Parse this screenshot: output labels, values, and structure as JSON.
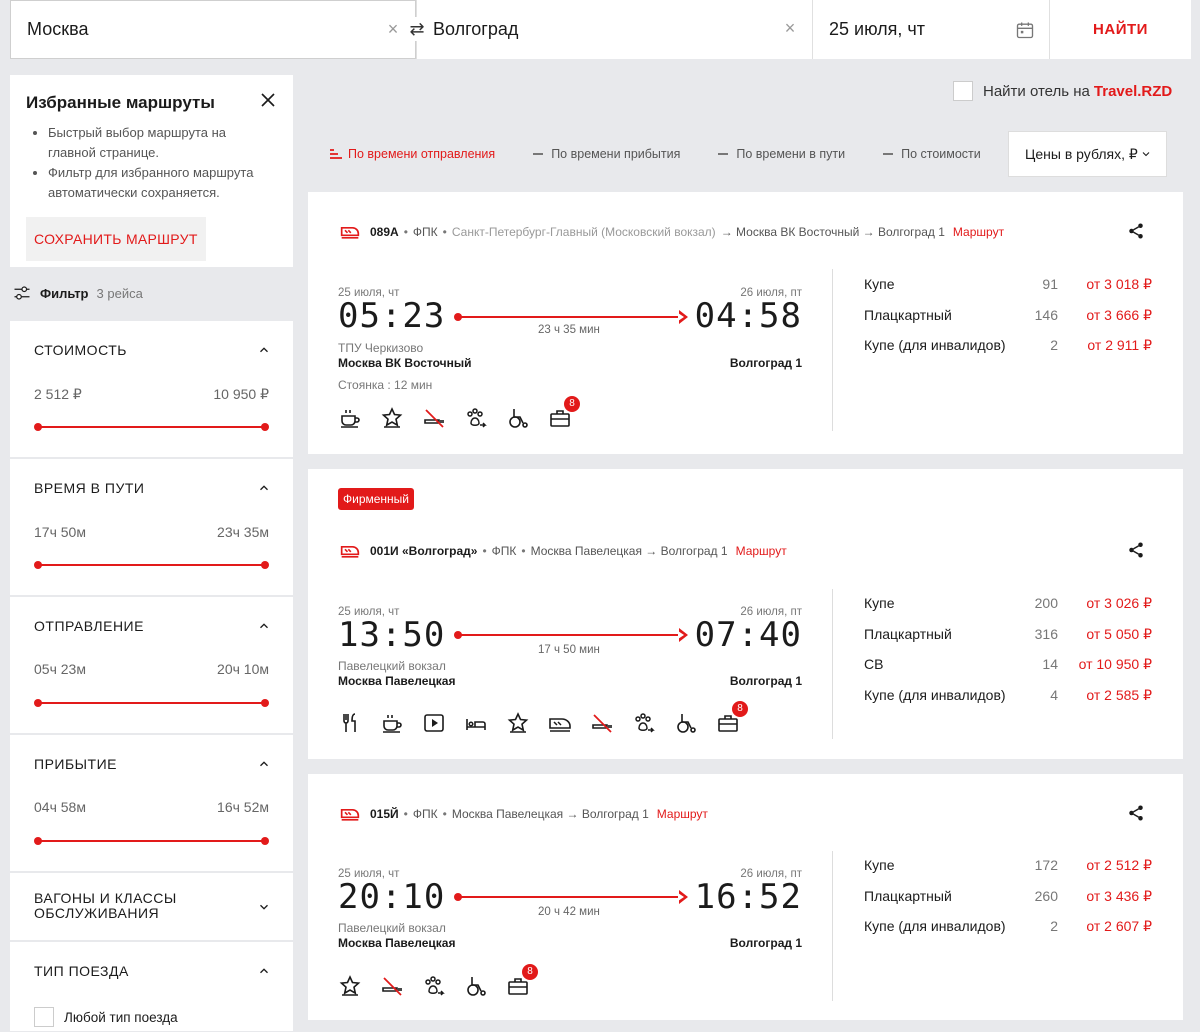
{
  "search": {
    "from": "Москва",
    "to": "Волгоград",
    "date": "25 июля, чт",
    "find_label": "НАЙТИ"
  },
  "favorites": {
    "title": "Избранные маршруты",
    "bullets": [
      "Быстрый выбор маршрута на главной странице.",
      "Фильтр для избранного маршрута автоматически сохраняется."
    ],
    "save_label": "СОХРАНИТЬ МАРШРУТ"
  },
  "filter": {
    "label": "Фильтр",
    "count": "3 рейса",
    "sections": [
      {
        "title": "СТОИМОСТЬ",
        "min": "2 512 ₽",
        "max": "10 950 ₽"
      },
      {
        "title": "ВРЕМЯ В ПУТИ",
        "min": "17ч 50м",
        "max": "23ч 35м"
      },
      {
        "title": "ОТПРАВЛЕНИЕ",
        "min": "05ч 23м",
        "max": "20ч 10м"
      },
      {
        "title": "ПРИБЫТИЕ",
        "min": "04ч 58м",
        "max": "16ч 52м"
      },
      {
        "title_line1": "ВАГОНЫ И КЛАССЫ",
        "title_line2": "ОБСЛУЖИВАНИЯ"
      },
      {
        "title": "ТИП ПОЕЗДА",
        "option": "Любой тип поезда"
      }
    ]
  },
  "hotel": {
    "text": "Найти отель на",
    "brand": "Travel.RZD"
  },
  "sort": {
    "items": [
      "По времени отправления",
      "По времени прибытия",
      "По времени в пути",
      "По стоимости"
    ],
    "currency": "Цены в рублях, ₽"
  },
  "trains": [
    {
      "number": "089А",
      "carrier": "ФПК",
      "origin": "Санкт-Петербург-Главный (Московский вокзал)",
      "route": "→ Москва ВК Восточный → Волгоград 1",
      "route_link": "Маршрут",
      "dep_date": "25 июля, чт",
      "dep_time": "05:23",
      "duration": "23 ч 35 мин",
      "arr_date": "26 июля, пт",
      "arr_time": "04:58",
      "dep_station_sub": "ТПУ Черкизово",
      "dep_station": "Москва ВК Восточный",
      "arr_station": "Волгоград 1",
      "stop": "Стоянка : 12 мин",
      "luggage_badge": "8",
      "prices": [
        {
          "cls": "Купе",
          "seats": "91",
          "cost": "от 3 018 ₽"
        },
        {
          "cls": "Плацкартный",
          "seats": "146",
          "cost": "от 3 666 ₽"
        },
        {
          "cls": "Купе (для инвалидов)",
          "seats": "2",
          "cost": "от 2 911 ₽"
        }
      ]
    },
    {
      "badge": "Фирменный",
      "number": "001И «Волгоград»",
      "carrier": "ФПК",
      "route": "Москва Павелецкая → Волгоград 1",
      "route_link": "Маршрут",
      "dep_date": "25 июля, чт",
      "dep_time": "13:50",
      "duration": "17 ч 50 мин",
      "arr_date": "26 июля, пт",
      "arr_time": "07:40",
      "dep_station_sub": "Павелецкий вокзал",
      "dep_station": "Москва Павелецкая",
      "arr_station": "Волгоград 1",
      "luggage_badge": "8",
      "prices": [
        {
          "cls": "Купе",
          "seats": "200",
          "cost": "от 3 026 ₽"
        },
        {
          "cls": "Плацкартный",
          "seats": "316",
          "cost": "от 5 050 ₽"
        },
        {
          "cls": "СВ",
          "seats": "14",
          "cost": "от 10 950 ₽"
        },
        {
          "cls": "Купе (для инвалидов)",
          "seats": "4",
          "cost": "от 2 585 ₽"
        }
      ]
    },
    {
      "number": "015Й",
      "carrier": "ФПК",
      "route": "Москва Павелецкая → Волгоград 1",
      "route_link": "Маршрут",
      "dep_date": "25 июля, чт",
      "dep_time": "20:10",
      "duration": "20 ч 42 мин",
      "arr_date": "26 июля, пт",
      "arr_time": "16:52",
      "dep_station_sub": "Павелецкий вокзал",
      "dep_station": "Москва Павелецкая",
      "arr_station": "Волгоград 1",
      "luggage_badge": "8",
      "prices": [
        {
          "cls": "Купе",
          "seats": "172",
          "cost": "от 2 512 ₽"
        },
        {
          "cls": "Плацкартный",
          "seats": "260",
          "cost": "от 3 436 ₽"
        },
        {
          "cls": "Купе (для инвалидов)",
          "seats": "2",
          "cost": "от 2 607 ₽"
        }
      ]
    }
  ]
}
